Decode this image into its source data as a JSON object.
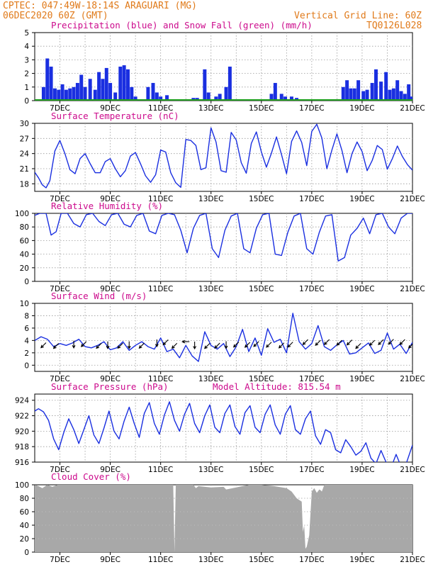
{
  "header": {
    "line1": "CPTEC:   047:49W-18:14S   ARAGUARI (MG)",
    "line2": "06DEC2020 60Z (GMT)",
    "grid_note": "Vertical Grid Line: 60Z",
    "code": "TQ0126L028"
  },
  "x_tick_labels": [
    "7DEC",
    "9DEC",
    "11DEC",
    "13DEC",
    "15DEC",
    "17DEC",
    "19DEC",
    "21DEC"
  ],
  "colors": {
    "line": "#1a2fe0",
    "snow": "#1e9e1e",
    "cloud": "#a8a8a8",
    "title": "#cc0a8c",
    "header": "#e07a1a"
  },
  "chart_data": [
    {
      "id": "precip",
      "type": "bar",
      "title": "Precipitation (blue) and Snow Fall (green) (mm/h)",
      "ylim": [
        0,
        5
      ],
      "yticks": [
        "0",
        "1",
        "2",
        "3",
        "4",
        "5"
      ],
      "xlim": [
        0,
        15
      ],
      "grid": true,
      "series": [
        {
          "name": "Precipitation",
          "x": [
            0.35,
            0.5,
            0.65,
            0.8,
            0.95,
            1.1,
            1.25,
            1.4,
            1.55,
            1.7,
            1.85,
            2.0,
            2.2,
            2.4,
            2.55,
            2.7,
            2.85,
            3.0,
            3.2,
            3.4,
            3.55,
            3.7,
            3.85,
            4.0,
            4.2,
            4.5,
            4.7,
            4.85,
            5.0,
            5.25,
            6.15,
            6.3,
            6.45,
            6.6,
            6.75,
            6.9,
            7.2,
            7.35,
            7.6,
            7.75,
            9.4,
            9.55,
            9.8,
            9.95,
            10.2,
            10.4,
            12.25,
            12.4,
            12.55,
            12.7,
            12.85,
            13.05,
            13.2,
            13.4,
            13.55,
            13.75,
            13.95,
            14.1,
            14.25,
            14.4,
            14.55,
            14.7,
            14.85,
            14.95
          ],
          "values": [
            1.0,
            3.1,
            2.5,
            0.9,
            0.8,
            1.2,
            0.8,
            0.9,
            1.0,
            1.3,
            1.9,
            1.0,
            1.6,
            0.8,
            2.1,
            1.6,
            2.4,
            1.3,
            0.6,
            2.5,
            2.6,
            2.3,
            1.0,
            0.3,
            0.1,
            1.0,
            1.3,
            0.6,
            0.3,
            0.4,
            0.1,
            0.2,
            0.2,
            0.1,
            2.3,
            0.6,
            0.3,
            0.5,
            1.0,
            2.5,
            0.5,
            1.3,
            0.5,
            0.3,
            0.3,
            0.2,
            1.0,
            1.5,
            0.9,
            0.9,
            1.5,
            0.7,
            0.8,
            1.3,
            2.3,
            1.4,
            2.1,
            0.8,
            0.9,
            1.5,
            0.7,
            0.5,
            1.2,
            0.3
          ]
        },
        {
          "name": "Snow Fall",
          "x": [
            0,
            15
          ],
          "values": [
            0,
            0
          ]
        }
      ]
    },
    {
      "id": "temp",
      "type": "line",
      "title": "Surface Temperature (nC)",
      "ylim": [
        16.5,
        30
      ],
      "yticks": [
        "18",
        "21",
        "24",
        "27",
        "30"
      ],
      "ytick_values": [
        18,
        21,
        24,
        27,
        30
      ],
      "xlim": [
        0,
        15
      ],
      "grid": true,
      "x": [
        0,
        0.15,
        0.3,
        0.45,
        0.6,
        0.8,
        1.0,
        1.2,
        1.4,
        1.6,
        1.8,
        2.0,
        2.2,
        2.4,
        2.6,
        2.8,
        3.0,
        3.2,
        3.4,
        3.6,
        3.8,
        4.0,
        4.2,
        4.4,
        4.6,
        4.8,
        5.0,
        5.2,
        5.4,
        5.6,
        5.8,
        6.0,
        6.2,
        6.4,
        6.6,
        6.8,
        7.0,
        7.2,
        7.4,
        7.6,
        7.8,
        8.0,
        8.2,
        8.4,
        8.6,
        8.8,
        9.0,
        9.2,
        9.4,
        9.6,
        9.8,
        10.0,
        10.2,
        10.4,
        10.6,
        10.8,
        11.0,
        11.2,
        11.4,
        11.6,
        11.8,
        12.0,
        12.2,
        12.4,
        12.6,
        12.8,
        13.0,
        13.2,
        13.4,
        13.6,
        13.8,
        14.0,
        14.2,
        14.4,
        14.6,
        14.8,
        15.0
      ],
      "values": [
        20.3,
        19.2,
        17.8,
        17.2,
        18.6,
        24.5,
        26.6,
        24.0,
        20.8,
        20.0,
        23.0,
        24.0,
        22.0,
        20.2,
        20.2,
        22.4,
        23.0,
        21.0,
        19.4,
        20.6,
        23.5,
        24.2,
        22.0,
        19.6,
        18.3,
        19.8,
        24.7,
        24.3,
        20.2,
        18.2,
        17.3,
        26.8,
        26.6,
        25.6,
        20.8,
        21.2,
        29.1,
        26.3,
        20.6,
        20.3,
        28.2,
        26.7,
        22.2,
        20.1,
        26.0,
        28.3,
        24.3,
        21.3,
        24.1,
        27.3,
        23.8,
        20.0,
        26.4,
        28.5,
        26.2,
        21.6,
        28.4,
        29.8,
        27.1,
        21.0,
        24.7,
        27.9,
        24.6,
        20.2,
        24.0,
        26.3,
        24.4,
        20.6,
        22.6,
        25.6,
        24.8,
        20.9,
        23.0,
        25.5,
        23.4,
        21.8,
        20.7
      ]
    },
    {
      "id": "rh",
      "type": "line",
      "title": "Relative Humidity (%)",
      "ylim": [
        0,
        100
      ],
      "yticks": [
        "0",
        "20",
        "40",
        "60",
        "80",
        "100"
      ],
      "ytick_values": [
        0,
        20,
        40,
        60,
        80,
        100
      ],
      "xlim": [
        0,
        15
      ],
      "grid": true,
      "x": [
        0,
        0.2,
        0.45,
        0.65,
        0.85,
        1.05,
        1.3,
        1.55,
        1.8,
        2.05,
        2.3,
        2.55,
        2.8,
        3.05,
        3.3,
        3.55,
        3.8,
        4.05,
        4.3,
        4.55,
        4.8,
        5.05,
        5.3,
        5.55,
        5.8,
        6.05,
        6.3,
        6.55,
        6.8,
        7.05,
        7.3,
        7.55,
        7.8,
        8.05,
        8.3,
        8.55,
        8.8,
        9.05,
        9.3,
        9.55,
        9.8,
        10.05,
        10.3,
        10.55,
        10.8,
        11.05,
        11.3,
        11.55,
        11.8,
        12.05,
        12.3,
        12.55,
        12.8,
        13.05,
        13.3,
        13.55,
        13.8,
        14.05,
        14.3,
        14.55,
        14.8,
        15.0
      ],
      "values": [
        97,
        100,
        100,
        68,
        73,
        100,
        100,
        85,
        80,
        98,
        100,
        88,
        82,
        98,
        100,
        84,
        80,
        97,
        100,
        74,
        70,
        97,
        100,
        98,
        75,
        42,
        78,
        97,
        100,
        48,
        35,
        75,
        96,
        100,
        48,
        42,
        78,
        98,
        100,
        40,
        38,
        72,
        96,
        100,
        48,
        40,
        72,
        96,
        98,
        30,
        35,
        68,
        78,
        93,
        70,
        98,
        100,
        80,
        70,
        93,
        100,
        100
      ]
    },
    {
      "id": "wind",
      "type": "line",
      "title": "Surface Wind (m/s)",
      "ylim": [
        -1,
        10
      ],
      "yticks": [
        "0",
        "2",
        "4",
        "6",
        "8",
        "10"
      ],
      "ytick_values": [
        0,
        2,
        4,
        6,
        8,
        10
      ],
      "xlim": [
        0,
        15
      ],
      "grid": true,
      "x": [
        0,
        0.25,
        0.5,
        0.75,
        1.0,
        1.25,
        1.5,
        1.75,
        2.0,
        2.25,
        2.5,
        2.75,
        3.0,
        3.25,
        3.5,
        3.75,
        4.0,
        4.25,
        4.5,
        4.75,
        5.0,
        5.25,
        5.5,
        5.75,
        6.0,
        6.25,
        6.5,
        6.75,
        7.0,
        7.25,
        7.5,
        7.75,
        8.0,
        8.25,
        8.5,
        8.75,
        9.0,
        9.25,
        9.5,
        9.75,
        10.0,
        10.25,
        10.5,
        10.75,
        11.0,
        11.25,
        11.5,
        11.75,
        12.0,
        12.25,
        12.5,
        12.75,
        13.0,
        13.25,
        13.5,
        13.75,
        14.0,
        14.25,
        14.5,
        14.75,
        15.0
      ],
      "values": [
        4.0,
        4.6,
        4.2,
        3.0,
        3.5,
        3.2,
        3.6,
        4.2,
        3.0,
        2.8,
        3.2,
        3.8,
        2.5,
        2.8,
        3.8,
        2.4,
        3.2,
        3.8,
        3.0,
        2.6,
        4.4,
        2.2,
        2.6,
        1.2,
        3.2,
        1.5,
        0.6,
        5.4,
        3.2,
        2.6,
        3.5,
        1.4,
        3.0,
        5.8,
        2.2,
        4.4,
        1.6,
        5.9,
        3.7,
        4.2,
        2.0,
        8.4,
        3.8,
        2.6,
        3.5,
        6.4,
        3.0,
        2.4,
        3.3,
        4.0,
        1.8,
        2.0,
        2.8,
        3.6,
        1.9,
        2.4,
        5.2,
        2.6,
        3.4,
        1.9,
        3.7
      ],
      "arrows": [
        {
          "x": 0.35,
          "dir": "sw"
        },
        {
          "x": 0.85,
          "dir": "sw"
        },
        {
          "x": 1.55,
          "dir": "s"
        },
        {
          "x": 1.95,
          "dir": "sw"
        },
        {
          "x": 2.55,
          "dir": "sw"
        },
        {
          "x": 2.9,
          "dir": "s"
        },
        {
          "x": 3.4,
          "dir": "sw"
        },
        {
          "x": 3.75,
          "dir": "s"
        },
        {
          "x": 4.25,
          "dir": "sw"
        },
        {
          "x": 4.85,
          "dir": "s"
        },
        {
          "x": 5.2,
          "dir": "sw"
        },
        {
          "x": 5.55,
          "dir": "sw"
        },
        {
          "x": 6.0,
          "dir": "w"
        },
        {
          "x": 6.35,
          "dir": "s"
        },
        {
          "x": 6.85,
          "dir": "sw"
        },
        {
          "x": 7.25,
          "dir": "sw"
        },
        {
          "x": 7.6,
          "dir": "s"
        },
        {
          "x": 8.0,
          "dir": "sw"
        },
        {
          "x": 8.45,
          "dir": "sw"
        },
        {
          "x": 8.8,
          "dir": "sw"
        },
        {
          "x": 9.3,
          "dir": "sw"
        },
        {
          "x": 9.8,
          "dir": "sw"
        },
        {
          "x": 10.15,
          "dir": "sw"
        },
        {
          "x": 10.75,
          "dir": "sw"
        },
        {
          "x": 11.25,
          "dir": "sw"
        },
        {
          "x": 11.6,
          "dir": "sw"
        },
        {
          "x": 12.1,
          "dir": "sw"
        },
        {
          "x": 12.5,
          "dir": "sw"
        },
        {
          "x": 12.85,
          "dir": "sw"
        },
        {
          "x": 13.4,
          "dir": "sw"
        },
        {
          "x": 13.75,
          "dir": "sw"
        },
        {
          "x": 14.15,
          "dir": "sw"
        },
        {
          "x": 14.6,
          "dir": "sw"
        },
        {
          "x": 14.95,
          "dir": "sw"
        }
      ]
    },
    {
      "id": "pressure",
      "type": "line",
      "title": "Surface Pressure (hPa)",
      "subtitle": "Model Altitude: 815.54 m",
      "ylim": [
        916,
        924.8
      ],
      "yticks": [
        "916",
        "918",
        "920",
        "922",
        "924"
      ],
      "ytick_values": [
        916,
        918,
        920,
        922,
        924
      ],
      "xlim": [
        0,
        15
      ],
      "grid": true,
      "x": [
        0,
        0.15,
        0.35,
        0.55,
        0.75,
        0.95,
        1.15,
        1.35,
        1.55,
        1.75,
        1.95,
        2.15,
        2.35,
        2.55,
        2.75,
        2.95,
        3.15,
        3.35,
        3.55,
        3.75,
        3.95,
        4.15,
        4.35,
        4.55,
        4.75,
        4.95,
        5.15,
        5.35,
        5.55,
        5.75,
        5.95,
        6.15,
        6.35,
        6.55,
        6.75,
        6.95,
        7.15,
        7.35,
        7.55,
        7.75,
        7.95,
        8.15,
        8.35,
        8.55,
        8.75,
        8.95,
        9.15,
        9.35,
        9.55,
        9.75,
        9.95,
        10.15,
        10.35,
        10.55,
        10.75,
        10.95,
        11.15,
        11.35,
        11.55,
        11.75,
        11.95,
        12.15,
        12.35,
        12.55,
        12.75,
        12.95,
        13.15,
        13.35,
        13.55,
        13.75,
        13.95,
        14.15,
        14.35,
        14.55,
        14.75,
        15.0
      ],
      "values": [
        922.6,
        922.9,
        922.5,
        921.4,
        919.0,
        917.6,
        919.8,
        921.6,
        920.2,
        918.4,
        920.2,
        922.0,
        919.5,
        918.4,
        920.4,
        922.6,
        920.0,
        919.0,
        921.3,
        923.1,
        921.0,
        919.2,
        922.3,
        923.7,
        921.0,
        919.6,
        922.1,
        923.8,
        921.4,
        920.0,
        922.2,
        923.6,
        921.0,
        919.8,
        922.0,
        923.4,
        920.5,
        919.8,
        922.3,
        923.4,
        920.6,
        919.6,
        922.4,
        923.3,
        920.5,
        919.8,
        922.2,
        923.4,
        920.8,
        919.6,
        922.2,
        923.3,
        920.2,
        919.6,
        921.6,
        922.6,
        919.4,
        918.3,
        920.2,
        919.8,
        917.6,
        917.2,
        918.9,
        918.0,
        916.9,
        917.4,
        918.5,
        916.5,
        915.8,
        917.5,
        916.0,
        915.3,
        917.0,
        915.4,
        915.8,
        918.2
      ]
    },
    {
      "id": "cloud",
      "type": "area",
      "title": "Cloud Cover (%)",
      "ylim": [
        0,
        100
      ],
      "yticks": [
        "0",
        "20",
        "40",
        "60",
        "80",
        "100"
      ],
      "ytick_values": [
        0,
        20,
        40,
        60,
        80,
        100
      ],
      "xlim": [
        0,
        15
      ],
      "grid": true,
      "x": [
        0,
        0.15,
        0.3,
        0.5,
        0.7,
        0.9,
        1.0,
        1.5,
        2.0,
        2.5,
        3.0,
        3.5,
        4.0,
        4.5,
        5.0,
        5.5,
        5.55,
        5.6,
        5.65,
        6.0,
        6.3,
        6.4,
        6.5,
        7.0,
        7.5,
        7.6,
        8.0,
        8.5,
        9.0,
        9.5,
        10.0,
        10.2,
        10.3,
        10.4,
        10.6,
        10.65,
        10.7,
        10.75,
        10.8,
        10.9,
        11.0,
        11.1,
        11.2,
        11.3,
        11.35,
        11.4,
        11.5,
        11.7,
        12.0,
        12.5,
        13.0,
        13.5,
        14.0,
        14.5,
        15.0
      ],
      "values": [
        100,
        98,
        95,
        100,
        97,
        100,
        100,
        100,
        100,
        100,
        100,
        100,
        100,
        100,
        100,
        100,
        0,
        100,
        100,
        100,
        100,
        95,
        98,
        96,
        97,
        93,
        96,
        100,
        100,
        98,
        95,
        90,
        85,
        80,
        75,
        30,
        40,
        5,
        8,
        25,
        90,
        95,
        88,
        93,
        92,
        90,
        100,
        100,
        100,
        100,
        100,
        100,
        100,
        100,
        100
      ]
    }
  ]
}
